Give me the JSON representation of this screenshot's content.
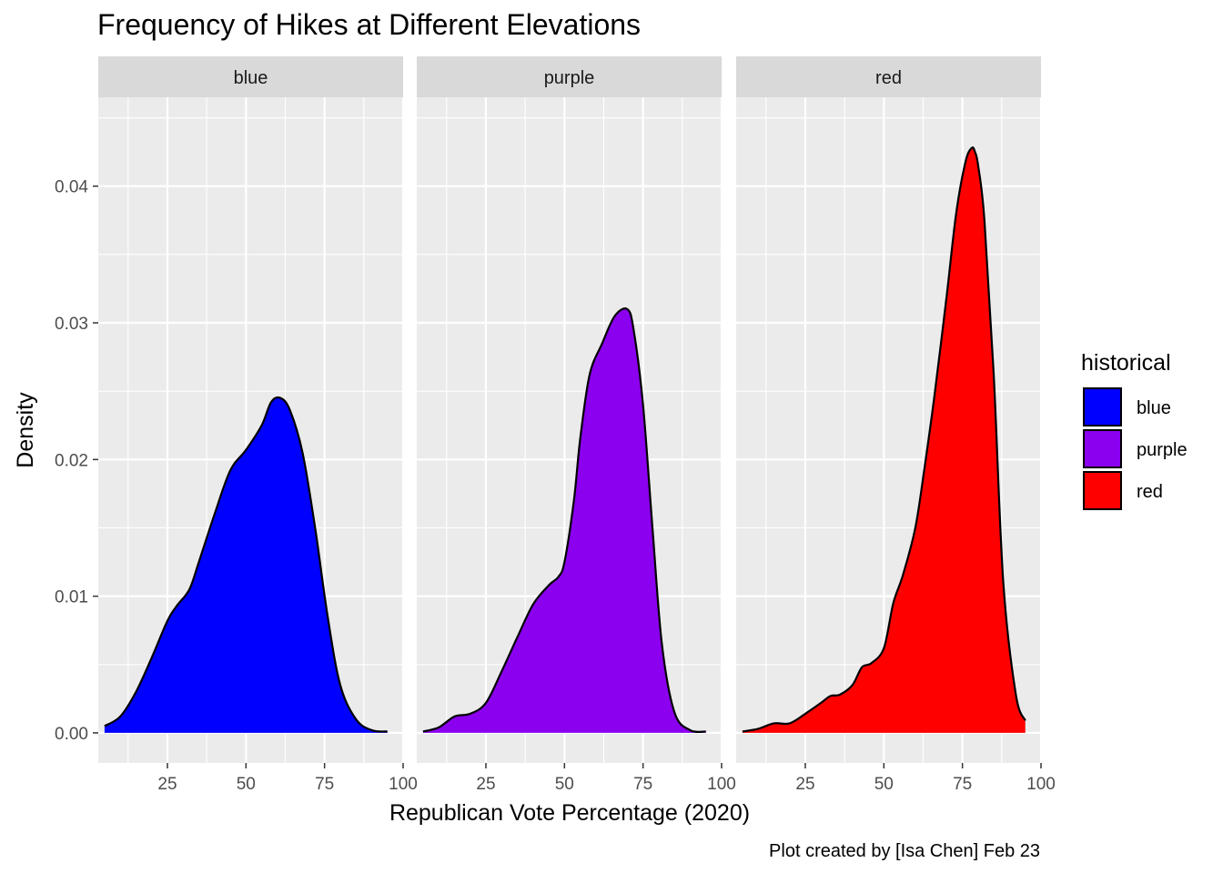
{
  "chart_data": {
    "type": "area",
    "subtype": "faceted density plot",
    "title": "Frequency of Hikes at Different Elevations",
    "xlabel": "Republican Vote Percentage (2020)",
    "ylabel": "Density",
    "caption": "Plot created by [Isa Chen] Feb 23",
    "xlim": [
      3,
      100
    ],
    "ylim": [
      -0.0022,
      0.0465
    ],
    "x_ticks": [
      25,
      50,
      75,
      100
    ],
    "x_tick_labels": [
      "25",
      "50",
      "75",
      "100"
    ],
    "y_ticks": [
      0,
      0.01,
      0.02,
      0.03,
      0.04
    ],
    "y_tick_labels": [
      "0.00",
      "0.01",
      "0.02",
      "0.03",
      "0.04"
    ],
    "grid": true,
    "legend": {
      "title": "historical",
      "position": "right",
      "entries": [
        {
          "label": "blue",
          "color": "#0000FF"
        },
        {
          "label": "purple",
          "color": "#8B00EE"
        },
        {
          "label": "red",
          "color": "#FF0000"
        }
      ]
    },
    "panels": [
      {
        "label": "blue",
        "color": "#0000FF",
        "series": {
          "x": [
            5,
            10,
            15,
            20,
            25,
            28,
            32,
            35,
            40,
            45,
            50,
            55,
            58,
            61,
            64,
            68,
            72,
            76,
            80,
            85,
            90,
            95
          ],
          "y": [
            0.0005,
            0.0012,
            0.003,
            0.0055,
            0.0082,
            0.0093,
            0.0105,
            0.0125,
            0.016,
            0.0192,
            0.0207,
            0.0225,
            0.0242,
            0.0245,
            0.0236,
            0.0205,
            0.015,
            0.0085,
            0.0035,
            0.001,
            0.0002,
            0.0001
          ]
        }
      },
      {
        "label": "purple",
        "color": "#8B00EE",
        "series": {
          "x": [
            5,
            10,
            15,
            20,
            25,
            30,
            35,
            40,
            45,
            48,
            50,
            53,
            55,
            58,
            62,
            66,
            70,
            72,
            75,
            78,
            81,
            85,
            90,
            95
          ],
          "y": [
            0.0001,
            0.0004,
            0.0012,
            0.0014,
            0.0022,
            0.0045,
            0.007,
            0.0094,
            0.0108,
            0.0114,
            0.0125,
            0.017,
            0.0215,
            0.0262,
            0.0285,
            0.0305,
            0.031,
            0.0295,
            0.024,
            0.015,
            0.0065,
            0.0015,
            0.0002,
            0.0001
          ]
        }
      },
      {
        "label": "red",
        "color": "#FF0000",
        "series": {
          "x": [
            5,
            10,
            15,
            20,
            25,
            30,
            33,
            36,
            40,
            43,
            46,
            50,
            53,
            56,
            60,
            63,
            66,
            70,
            73,
            76,
            78,
            79,
            80,
            82,
            85,
            88,
            92,
            95
          ],
          "y": [
            0.0001,
            0.0003,
            0.0007,
            0.0007,
            0.0014,
            0.0022,
            0.0027,
            0.0028,
            0.0035,
            0.0048,
            0.0051,
            0.0062,
            0.0095,
            0.0115,
            0.015,
            0.0195,
            0.0245,
            0.032,
            0.038,
            0.0418,
            0.0428,
            0.0425,
            0.0415,
            0.0375,
            0.026,
            0.011,
            0.0028,
            0.0009
          ]
        }
      }
    ]
  }
}
